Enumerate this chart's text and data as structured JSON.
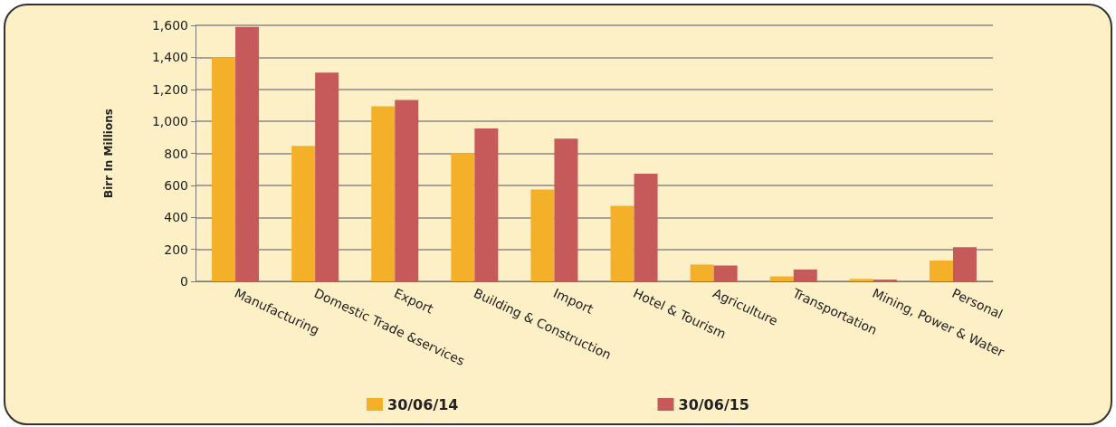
{
  "chart_data": {
    "type": "bar",
    "ylabel": "Birr In Millions",
    "categories": [
      "Manufacturing",
      "Domestic Trade &services",
      "Export",
      "Building & Construction",
      "Import",
      "Hotel & Tourism",
      "Agriculture",
      "Transportation",
      "Mining, Power & Water",
      "Personal"
    ],
    "series": [
      {
        "name": "30/06/14",
        "color": "#f5b02a",
        "values": [
          1400,
          846,
          1094,
          800,
          574,
          472,
          105,
          31,
          15,
          130
        ]
      },
      {
        "name": "30/06/15",
        "color": "#c65a5a",
        "values": [
          1590,
          1305,
          1134,
          956,
          892,
          673,
          99,
          74,
          11,
          213
        ]
      }
    ],
    "ylim": [
      0,
      1600
    ],
    "yticks": [
      0,
      200,
      400,
      600,
      800,
      {
        "value": 1000,
        "label": "1,000"
      },
      {
        "value": 1200,
        "label": "1,200"
      },
      {
        "value": 1400,
        "label": "1,400"
      },
      {
        "value": 1600,
        "label": "1,600"
      }
    ],
    "grid": "y",
    "legend": "bottom"
  }
}
